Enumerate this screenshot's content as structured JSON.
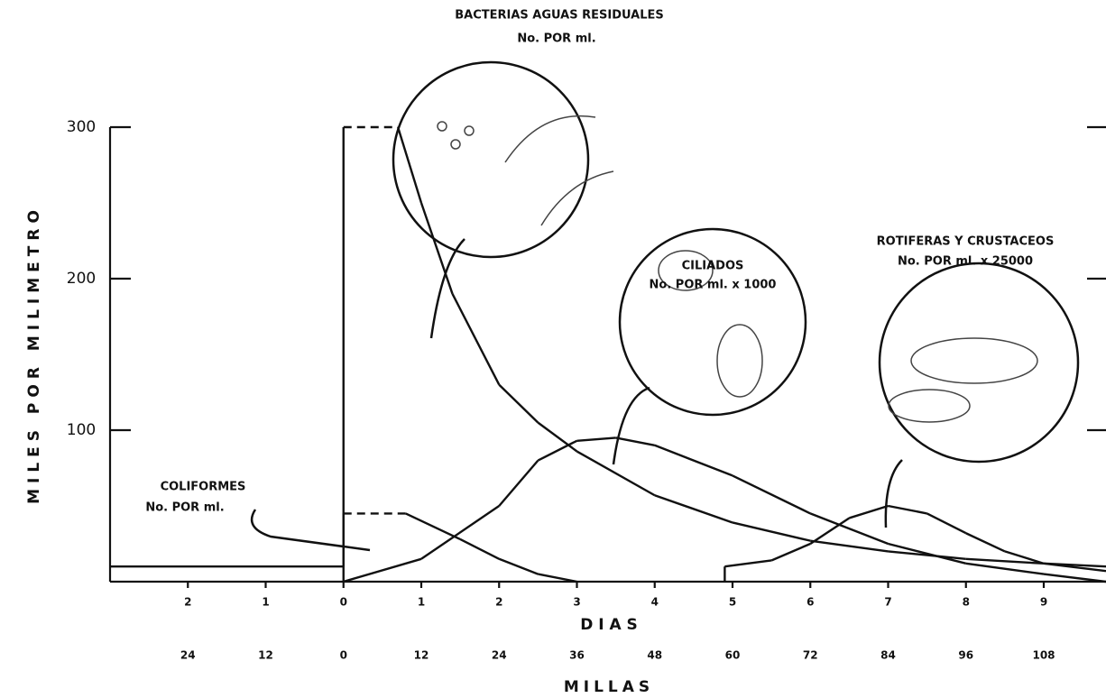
{
  "chart_data": {
    "type": "line",
    "ylabel": "MILES POR MILIMETRO",
    "xlabel": "D I A S",
    "x2label": "MILLAS",
    "xlim": [
      -3,
      9.8
    ],
    "xticks": [
      {
        "value": -2,
        "label": "2"
      },
      {
        "value": -1,
        "label": "1"
      },
      0,
      1,
      2,
      3,
      4,
      5,
      6,
      7,
      8,
      9
    ],
    "x2lim": [
      -36,
      117.6
    ],
    "x2ticks": [
      {
        "value": -24,
        "label": "24"
      },
      {
        "value": -12,
        "label": "12"
      },
      0,
      12,
      24,
      36,
      48,
      60,
      72,
      84,
      96,
      108
    ],
    "ylim": [
      0,
      300
    ],
    "yticks": [
      100,
      200,
      300
    ],
    "series": [
      {
        "name": "BACTERIAS AGUAS RESIDUALES",
        "unit": "No. POR ml.",
        "color": "#111",
        "dashed": [
          2
        ],
        "x": [
          -3,
          0,
          0,
          0.7,
          1,
          1.4,
          2,
          2.5,
          3,
          4,
          5,
          6,
          7,
          8,
          9,
          9.8
        ],
        "values": [
          10,
          10,
          300,
          300,
          250,
          190,
          130,
          105,
          86,
          57,
          39,
          27,
          20,
          15,
          12,
          10
        ]
      },
      {
        "name": "COLIFORMES",
        "unit": "No. POR ml.",
        "color": "#111",
        "dashed": [
          1
        ],
        "x": [
          0,
          0,
          0.8,
          1.5,
          2,
          2.5,
          3
        ],
        "values": [
          0,
          45,
          45,
          28,
          15,
          5,
          0
        ]
      },
      {
        "name": "CILIADOS",
        "unit": "No. POR ml. x 1000",
        "color": "#111",
        "dashed": [],
        "x": [
          0,
          1,
          2,
          2.5,
          3,
          3.5,
          4,
          5,
          6,
          7,
          8,
          9,
          9.8
        ],
        "values": [
          0,
          15,
          50,
          80,
          93,
          95,
          90,
          70,
          45,
          25,
          12,
          5,
          0
        ]
      },
      {
        "name": "ROTIFERAS Y CRUSTACEOS",
        "unit": "No. POR ml. x 25000",
        "color": "#111",
        "dashed": [],
        "x": [
          4.9,
          4.9,
          5.5,
          6,
          6.5,
          7,
          7.5,
          8,
          8.5,
          9,
          9.8
        ],
        "values": [
          0,
          10,
          14,
          25,
          42,
          50,
          45,
          32,
          20,
          12,
          7
        ]
      }
    ]
  }
}
